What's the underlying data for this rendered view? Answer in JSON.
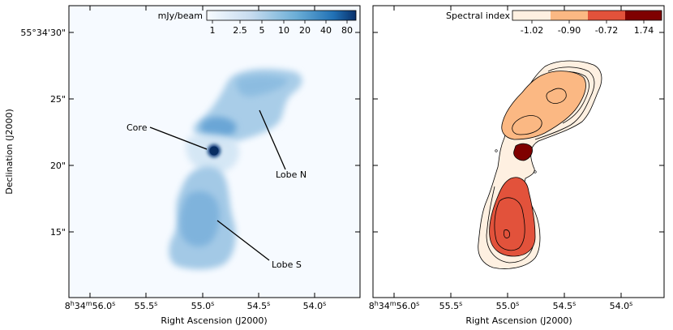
{
  "figure": {
    "left_panel": {
      "colorbar_label": "mJy/beam",
      "colorbar_ticks": [
        "1",
        "2.5",
        "5",
        "10",
        "20",
        "40",
        "80"
      ],
      "annotations": [
        "Core",
        "Lobe N",
        "Lobe S"
      ]
    },
    "right_panel": {
      "colorbar_label": "Spectral index",
      "colorbar_ticks": [
        "-1.02",
        "-0.90",
        "-0.72",
        "1.74"
      ],
      "colorbar_colors": [
        "#fef0e1",
        "#fbb883",
        "#e2523b",
        "#7f0000"
      ]
    },
    "axes": {
      "xlabel": "Right Ascension (J2000)",
      "ylabel": "Declination (J2000)",
      "x_first_prefix": "8",
      "x_first_h": "h",
      "x_first_mid": "34",
      "x_first_m": "m",
      "x_first_suffix": "56.0",
      "x_first_s": "s",
      "x_ticks": [
        "55.5",
        "55.0",
        "54.5",
        "54.0"
      ],
      "x_tick_unit": "s",
      "y_first": "55°34'30\"",
      "y_ticks": [
        "25\"",
        "20\"",
        "15\""
      ]
    }
  },
  "colors": {
    "map_background": "#f6faff",
    "emission_light": "#9ec7e4",
    "emission_mid": "#5d9ccf",
    "emission_dark": "#2f73b5",
    "core": "#0b3a7a"
  }
}
